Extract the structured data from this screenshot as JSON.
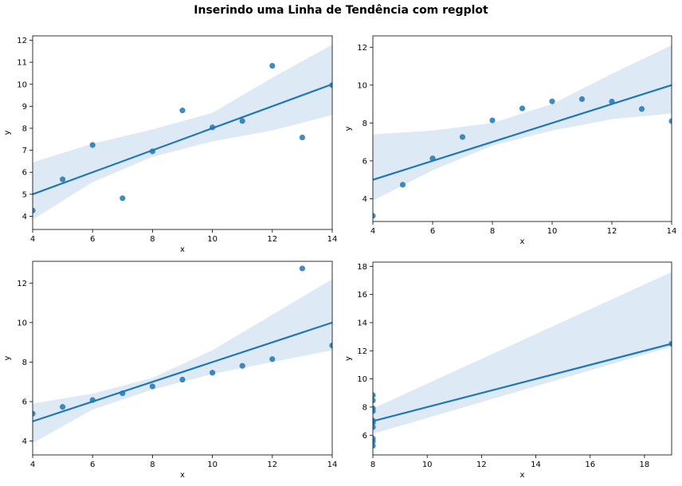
{
  "figure": {
    "title": "Inserindo uma Linha de Tendência com regplot",
    "colors": {
      "points": "#1f77b4",
      "line": "#1f77b4",
      "band": "#dde9f5"
    }
  },
  "chart_data": [
    {
      "type": "scatter",
      "xlabel": "x",
      "ylabel": "y",
      "xlim": [
        4,
        14
      ],
      "ylim": [
        3.4,
        12.2
      ],
      "xticks": [
        4,
        6,
        8,
        10,
        12,
        14
      ],
      "yticks": [
        4,
        5,
        6,
        7,
        8,
        9,
        10,
        11,
        12
      ],
      "points": [
        [
          4,
          4.26
        ],
        [
          5,
          5.68
        ],
        [
          6,
          7.24
        ],
        [
          7,
          4.82
        ],
        [
          8,
          6.95
        ],
        [
          9,
          8.81
        ],
        [
          10,
          8.04
        ],
        [
          11,
          8.33
        ],
        [
          12,
          10.84
        ],
        [
          13,
          7.58
        ],
        [
          14,
          9.96
        ]
      ],
      "trend_line": [
        [
          4,
          5.0
        ],
        [
          14,
          10.0
        ]
      ],
      "ci_upper": [
        [
          4,
          6.45
        ],
        [
          6,
          7.3
        ],
        [
          8,
          7.95
        ],
        [
          10,
          8.7
        ],
        [
          12,
          10.3
        ],
        [
          14,
          11.8
        ]
      ],
      "ci_lower": [
        [
          4,
          3.85
        ],
        [
          6,
          5.55
        ],
        [
          8,
          6.7
        ],
        [
          10,
          7.4
        ],
        [
          12,
          7.9
        ],
        [
          14,
          8.6
        ]
      ],
      "grid": false
    },
    {
      "type": "scatter",
      "xlabel": "x",
      "ylabel": "y",
      "xlim": [
        4,
        14
      ],
      "ylim": [
        2.8,
        12.6
      ],
      "xticks": [
        4,
        6,
        8,
        10,
        12,
        14
      ],
      "yticks": [
        4,
        6,
        8,
        10,
        12
      ],
      "points": [
        [
          4,
          3.1
        ],
        [
          5,
          4.74
        ],
        [
          6,
          6.13
        ],
        [
          7,
          7.26
        ],
        [
          8,
          8.14
        ],
        [
          9,
          8.77
        ],
        [
          10,
          9.14
        ],
        [
          11,
          9.26
        ],
        [
          12,
          9.13
        ],
        [
          13,
          8.74
        ],
        [
          14,
          8.1
        ]
      ],
      "trend_line": [
        [
          4,
          5.0
        ],
        [
          14,
          10.0
        ]
      ],
      "ci_upper": [
        [
          4,
          7.4
        ],
        [
          6,
          7.6
        ],
        [
          8,
          8.0
        ],
        [
          10,
          9.0
        ],
        [
          12,
          10.6
        ],
        [
          14,
          12.1
        ]
      ],
      "ci_lower": [
        [
          4,
          3.9
        ],
        [
          6,
          5.5
        ],
        [
          8,
          6.8
        ],
        [
          10,
          7.6
        ],
        [
          12,
          8.2
        ],
        [
          14,
          8.5
        ]
      ],
      "grid": false
    },
    {
      "type": "scatter",
      "xlabel": "x",
      "ylabel": "y",
      "xlim": [
        4,
        14
      ],
      "ylim": [
        3.3,
        13.1
      ],
      "xticks": [
        4,
        6,
        8,
        10,
        12,
        14
      ],
      "yticks": [
        4,
        6,
        8,
        10,
        12
      ],
      "points": [
        [
          4,
          5.39
        ],
        [
          5,
          5.73
        ],
        [
          6,
          6.08
        ],
        [
          7,
          6.42
        ],
        [
          8,
          6.77
        ],
        [
          9,
          7.11
        ],
        [
          10,
          7.46
        ],
        [
          11,
          7.81
        ],
        [
          12,
          8.15
        ],
        [
          13,
          12.74
        ],
        [
          14,
          8.84
        ]
      ],
      "trend_line": [
        [
          4,
          5.0
        ],
        [
          14,
          10.0
        ]
      ],
      "ci_upper": [
        [
          4,
          5.9
        ],
        [
          6,
          6.4
        ],
        [
          8,
          7.2
        ],
        [
          10,
          8.6
        ],
        [
          12,
          10.4
        ],
        [
          14,
          12.2
        ]
      ],
      "ci_lower": [
        [
          4,
          3.9
        ],
        [
          6,
          5.6
        ],
        [
          8,
          6.6
        ],
        [
          10,
          7.4
        ],
        [
          12,
          8.0
        ],
        [
          14,
          8.6
        ]
      ],
      "grid": false
    },
    {
      "type": "scatter",
      "xlabel": "x",
      "ylabel": "y",
      "xlim": [
        8,
        19
      ],
      "ylim": [
        4.6,
        18.3
      ],
      "xticks": [
        8,
        10,
        12,
        14,
        16,
        18
      ],
      "yticks": [
        6,
        8,
        10,
        12,
        14,
        16,
        18
      ],
      "points": [
        [
          8,
          6.58
        ],
        [
          8,
          5.76
        ],
        [
          8,
          7.71
        ],
        [
          8,
          8.84
        ],
        [
          8,
          8.47
        ],
        [
          8,
          7.04
        ],
        [
          8,
          5.25
        ],
        [
          8,
          5.56
        ],
        [
          8,
          7.91
        ],
        [
          8,
          6.89
        ],
        [
          19,
          12.5
        ]
      ],
      "trend_line": [
        [
          8,
          7.0
        ],
        [
          19,
          12.5
        ]
      ],
      "ci_upper": [
        [
          8,
          7.9
        ],
        [
          19,
          17.6
        ]
      ],
      "ci_lower": [
        [
          8,
          6.1
        ],
        [
          19,
          12.3
        ]
      ],
      "grid": false
    }
  ]
}
